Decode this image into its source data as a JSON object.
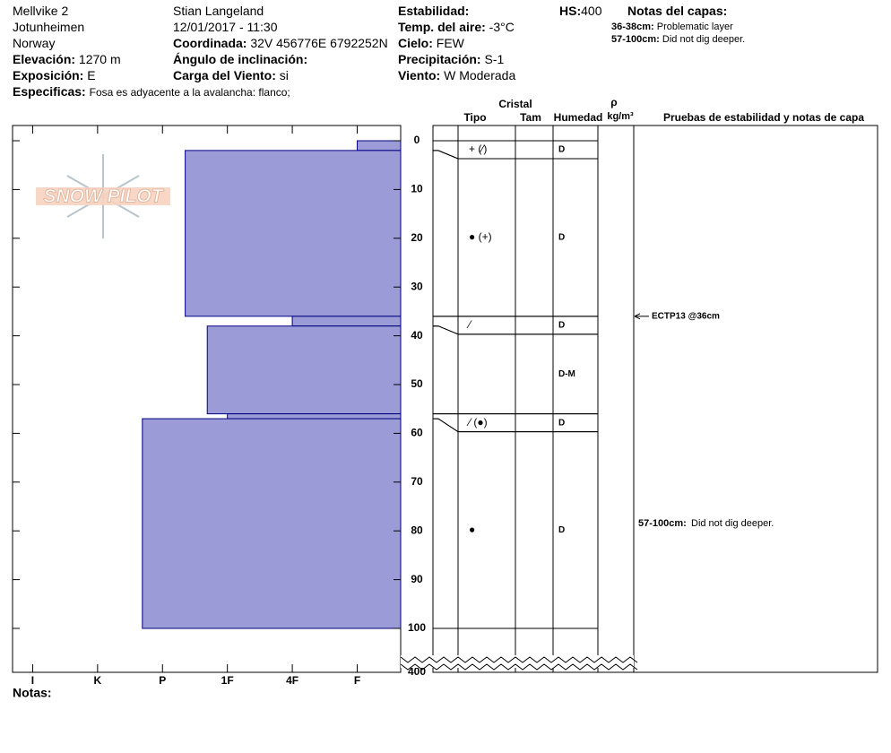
{
  "header": {
    "site": "Mellvike 2",
    "range": "Jotunheimen",
    "country": "Norway",
    "elevation": {
      "label": "Elevación:",
      "value": "1270 m"
    },
    "aspect": {
      "label": "Exposición:",
      "value": "E"
    },
    "specifics": {
      "label": "Especificas:",
      "value": "Fosa es adyacente a la avalancha: flanco;"
    },
    "observer": "Stian Langeland",
    "datetime": "12/01/2017 - 11:30",
    "coordinate": {
      "label": "Coordinada:",
      "value": "32V 456776E 6792252N"
    },
    "slope": {
      "label": "Ángulo de inclinación:"
    },
    "wind_load": {
      "label": "Carga del Viento:",
      "value": "si"
    },
    "stability": {
      "label": "Estabilidad:"
    },
    "air_temp": {
      "label": "Temp. del aire:",
      "value": "-3°C"
    },
    "sky": {
      "label": "Cielo:",
      "value": "FEW"
    },
    "precip": {
      "label": "Precipitación:",
      "value": "S-1"
    },
    "wind": {
      "label": "Viento:",
      "value": "W Moderada"
    },
    "hs": {
      "label": "HS:",
      "value": "400"
    },
    "notes_title": "Notas del capas:",
    "notes": [
      {
        "range": "36-38cm:",
        "text": "Problematic layer"
      },
      {
        "range": "57-100cm:",
        "text": "Did not dig deeper."
      }
    ],
    "logo": "SNOW PILOT"
  },
  "chart_data": {
    "type": "snow_profile",
    "ylim": [
      0,
      100
    ],
    "yticks": [
      0,
      10,
      20,
      30,
      40,
      50,
      60,
      70,
      80,
      90,
      100,
      400
    ],
    "axis_break": true,
    "xlim": [
      0.33,
      6.31
    ],
    "xticks": [
      {
        "value": 6,
        "label": "I"
      },
      {
        "value": 5,
        "label": "K"
      },
      {
        "value": 4,
        "label": "P"
      },
      {
        "value": 3,
        "label": "1F"
      },
      {
        "value": 2,
        "label": "4F"
      },
      {
        "value": 1,
        "label": "F"
      }
    ],
    "color": "#9b9bd8",
    "layers": [
      {
        "top": 0,
        "bottom": 2,
        "hardness": 1,
        "crystal": "+ (⁄)",
        "moisture": "D"
      },
      {
        "top": 2,
        "bottom": 36,
        "hardness": 3.65,
        "crystal": "● (+)",
        "moisture": "D"
      },
      {
        "top": 36,
        "bottom": 38,
        "hardness": 2,
        "crystal": "⁄",
        "moisture": "D"
      },
      {
        "top": 38,
        "bottom": 56,
        "hardness": 3.31,
        "moisture": "D-M"
      },
      {
        "top": 56,
        "bottom": 57,
        "hardness": 3,
        "crystal": "⁄ (●)",
        "moisture": "D"
      },
      {
        "top": 57,
        "bottom": 100,
        "hardness": 4.31,
        "crystal": "●",
        "moisture": "D",
        "note_range": "57-100cm:",
        "note": "Did not dig deeper."
      }
    ],
    "tests": [
      {
        "text": "ECTP13 @36cm",
        "depth": 36
      }
    ],
    "columns": {
      "crystal": "Cristal",
      "type": "Tipo",
      "size": "Tam",
      "moisture": "Humedad",
      "rho": "ρ",
      "density_unit": "kg/m³",
      "tests": "Pruebas de estabilidad y notas de capa"
    },
    "notes_label": "Notas:"
  }
}
